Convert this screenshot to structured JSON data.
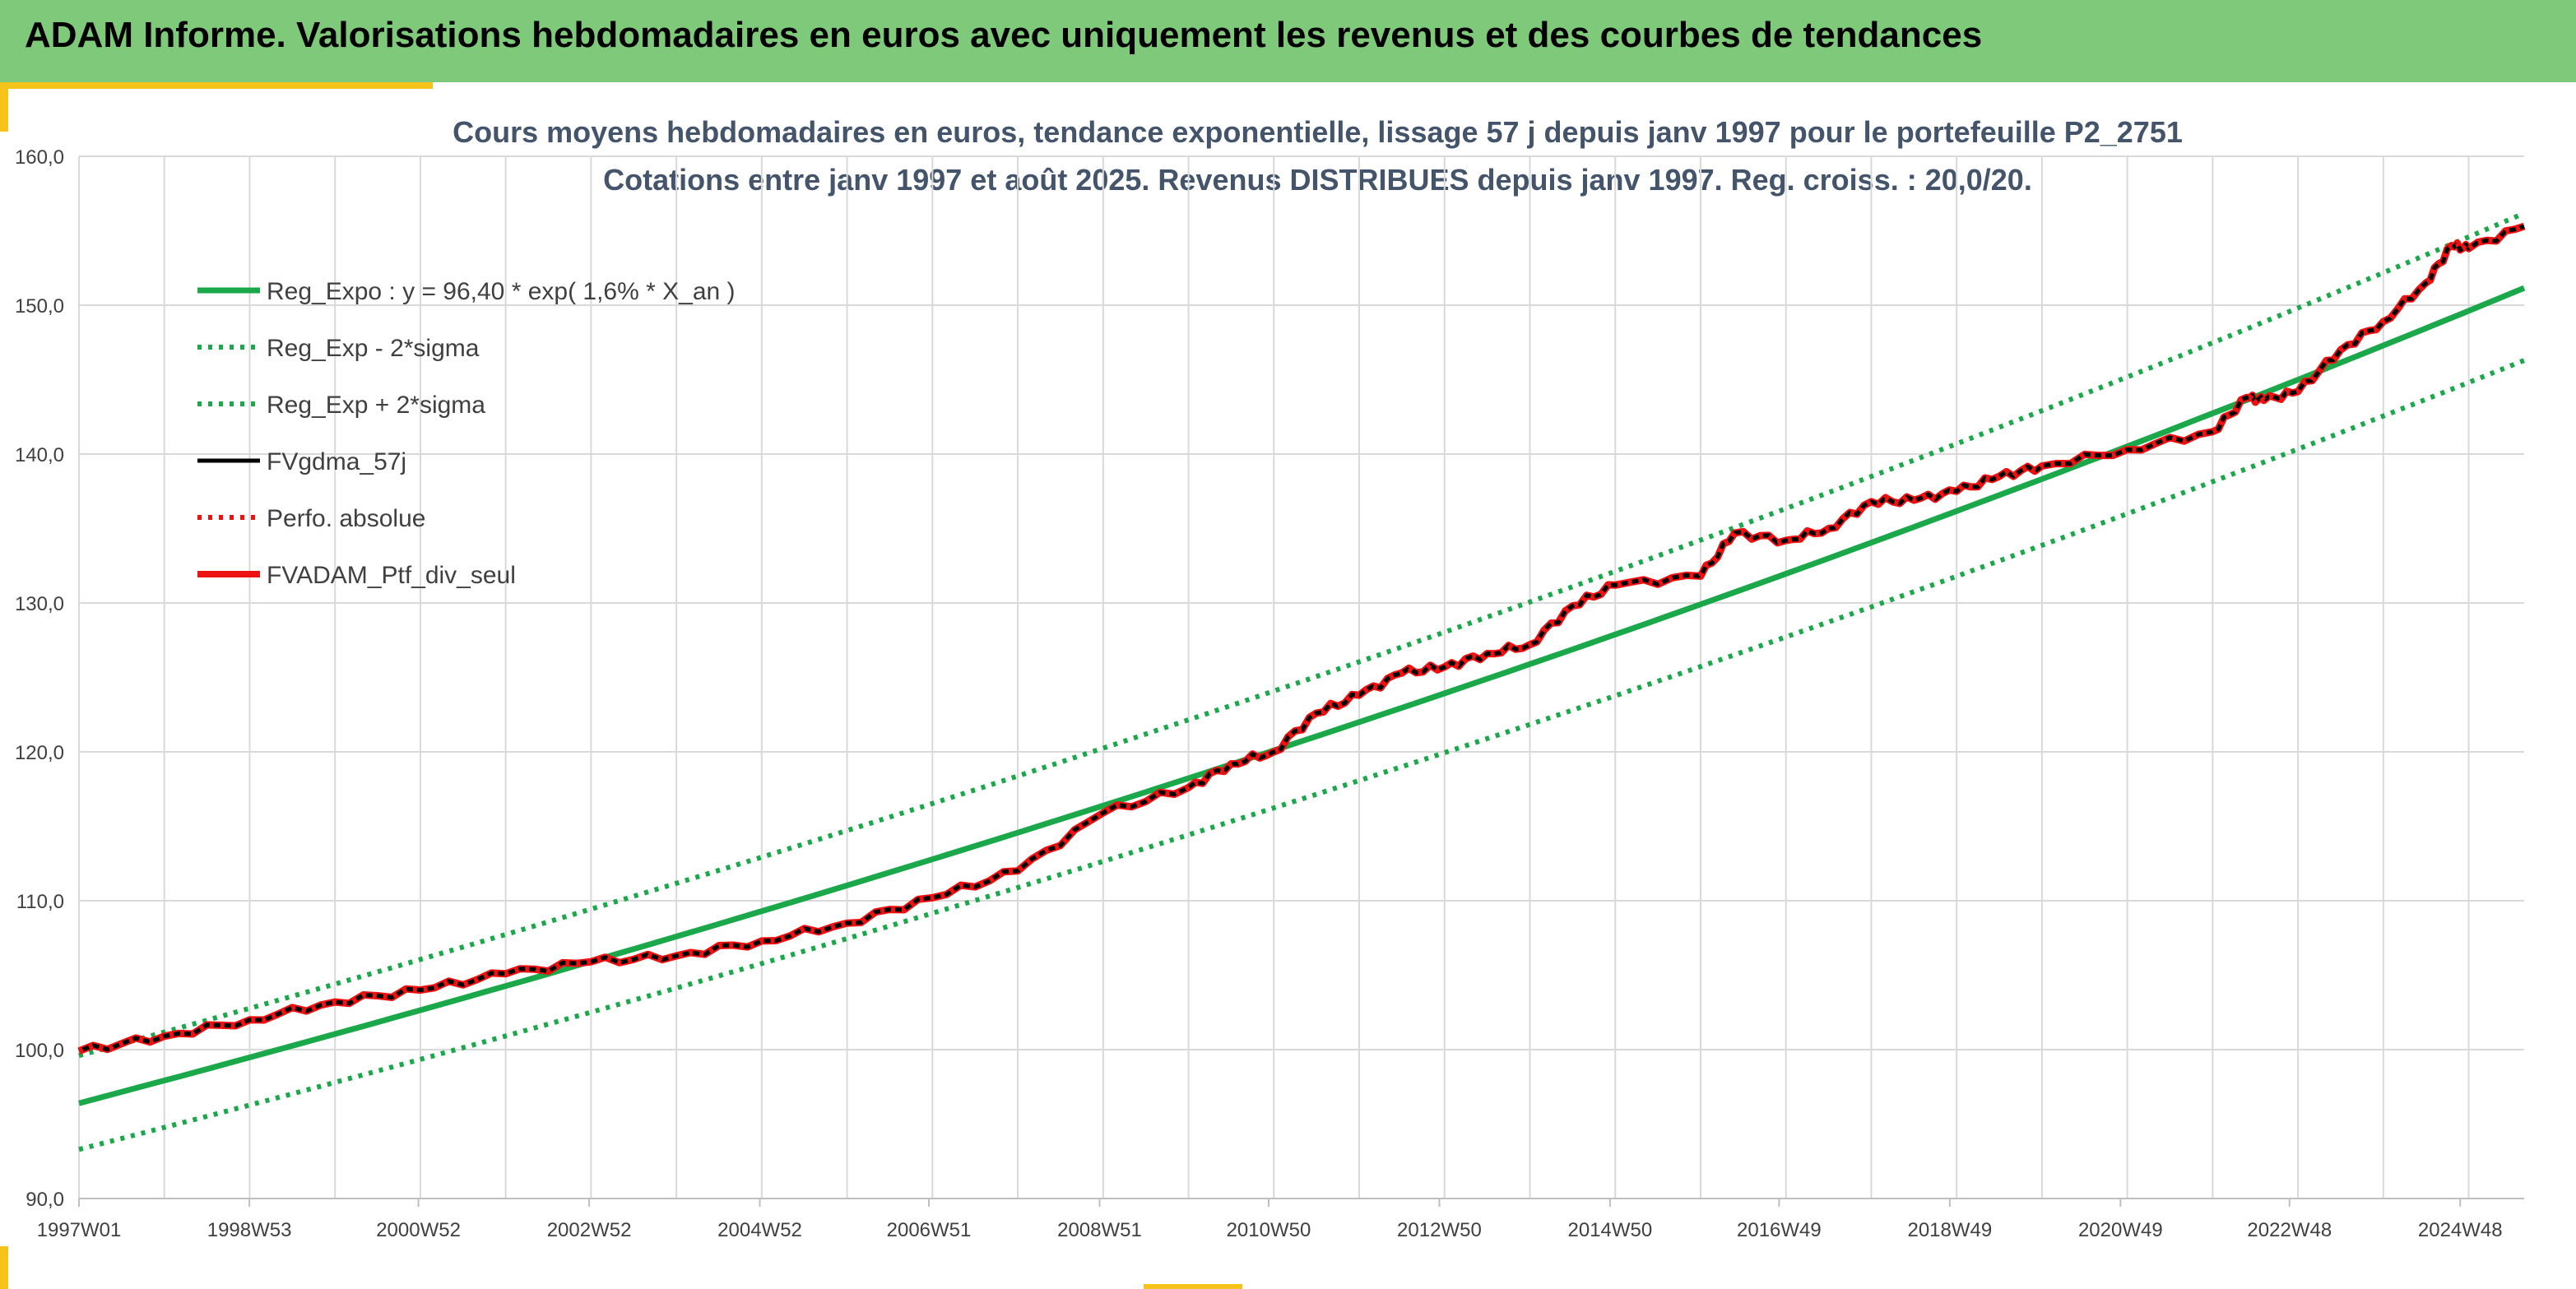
{
  "header": {
    "title": "ADAM Informe. Valorisations hebdomadaires en euros avec uniquement les revenus et des courbes de tendances"
  },
  "colors": {
    "header_bg": "#7fc97a",
    "accent": "#f6c31a",
    "trend": "#1aa84a",
    "black_series": "#000000",
    "red_series": "#ee1111",
    "title": "#44546a"
  },
  "chart_data": {
    "type": "line",
    "title": "Cours moyens hebdomadaires en euros, tendance exponentielle, lissage 57 j depuis janv 1997 pour le portefeuille P2_2751",
    "subtitle": "Cotations entre janv 1997 et août 2025. Revenus DISTRIBUES depuis janv 1997. Reg. croiss. : 20,0/20.",
    "xlabel": "",
    "ylabel": "",
    "x_ticks": [
      "1997W01",
      "1998W53",
      "2000W52",
      "2002W52",
      "2004W52",
      "2006W51",
      "2008W51",
      "2010W50",
      "2012W50",
      "2014W50",
      "2016W49",
      "2018W49",
      "2020W49",
      "2022W48",
      "2024W48"
    ],
    "y_ticks": [
      "90,0",
      "100,0",
      "110,0",
      "120,0",
      "130,0",
      "140,0",
      "150,0",
      "160,0"
    ],
    "ylim": [
      90,
      160
    ],
    "xlim": [
      1997.0,
      2025.65
    ],
    "grid": true,
    "legend_position": "top-left",
    "series": [
      {
        "name": "Reg_Expo : y = 96,40 * exp( 1,6% *  X_an )",
        "style": "solid",
        "color": "#1aa84a",
        "x": [
          1997.0,
          2025.65
        ],
        "formula": {
          "a": 96.4,
          "b": 0.0157
        }
      },
      {
        "name": "Reg_Exp - 2*sigma",
        "style": "dotted",
        "color": "#1aa84a",
        "x": [
          1997.0,
          2025.65
        ],
        "formula": {
          "a": 93.3,
          "b": 0.0157
        }
      },
      {
        "name": "Reg_Exp + 2*sigma",
        "style": "dotted",
        "color": "#1aa84a",
        "x": [
          1997.0,
          2025.65
        ],
        "formula": {
          "a": 99.6,
          "b": 0.0157
        }
      },
      {
        "name": "FVgdma_57j",
        "style": "solid",
        "color": "#000000",
        "x": [
          1997.0,
          1998.0,
          1999.0,
          2000.0,
          2001.0,
          2002.0,
          2003.0,
          2004.0,
          2005.0,
          2006.0,
          2007.0,
          2008.0,
          2009.0,
          2010.0,
          2010.5,
          2011.0,
          2011.5,
          2012.0,
          2012.5,
          2013.0,
          2013.5,
          2014.0,
          2014.5,
          2015.0,
          2016.0,
          2016.4,
          2017.0,
          2017.5,
          2018.0,
          2018.5,
          2019.0,
          2019.5,
          2020.0,
          2021.0,
          2022.0,
          2022.4,
          2022.6,
          2023.0,
          2023.5,
          2024.0,
          2024.5,
          2024.8,
          2025.0,
          2025.65
        ],
        "values": [
          99.9,
          100.9,
          102.0,
          103.2,
          104.0,
          105.1,
          105.9,
          106.3,
          107.3,
          108.5,
          110.2,
          112.0,
          115.9,
          117.6,
          119.2,
          120.0,
          122.6,
          123.8,
          125.3,
          125.7,
          126.6,
          127.2,
          129.8,
          131.2,
          131.8,
          134.7,
          134.2,
          135.0,
          136.8,
          136.9,
          137.5,
          138.5,
          139.2,
          140.3,
          141.5,
          143.8,
          143.6,
          144.2,
          147.0,
          148.9,
          151.5,
          154.0,
          153.8,
          155.3
        ]
      },
      {
        "name": "Perfo. absolue",
        "style": "dotted",
        "color": "#ee1111",
        "x": [
          1997.0,
          1998.0,
          1999.0,
          2000.0,
          2001.0,
          2002.0,
          2003.0,
          2004.0,
          2005.0,
          2006.0,
          2007.0,
          2008.0,
          2009.0,
          2010.0,
          2010.5,
          2011.0,
          2011.5,
          2012.0,
          2012.5,
          2013.0,
          2013.5,
          2014.0,
          2014.5,
          2015.0,
          2016.0,
          2016.4,
          2017.0,
          2017.5,
          2018.0,
          2018.5,
          2019.0,
          2019.5,
          2020.0,
          2021.0,
          2022.0,
          2022.4,
          2022.6,
          2023.0,
          2023.5,
          2024.0,
          2024.5,
          2024.8,
          2025.0,
          2025.65
        ],
        "values": [
          99.9,
          100.9,
          102.0,
          103.2,
          104.0,
          105.1,
          105.9,
          106.3,
          107.3,
          108.5,
          110.2,
          112.0,
          115.9,
          117.6,
          119.2,
          120.0,
          122.6,
          123.8,
          125.3,
          125.7,
          126.6,
          127.2,
          129.8,
          131.2,
          131.8,
          134.7,
          134.2,
          135.0,
          136.8,
          136.9,
          137.5,
          138.5,
          139.2,
          140.3,
          141.5,
          143.8,
          143.6,
          144.2,
          147.0,
          148.9,
          151.5,
          154.0,
          153.8,
          155.3
        ]
      },
      {
        "name": "FVADAM_Ptf_div_seul",
        "style": "solid-thick",
        "color": "#ee1111",
        "x": [
          1997.0,
          1998.0,
          1999.0,
          2000.0,
          2001.0,
          2002.0,
          2003.0,
          2004.0,
          2005.0,
          2006.0,
          2007.0,
          2008.0,
          2009.0,
          2010.0,
          2010.5,
          2011.0,
          2011.5,
          2012.0,
          2012.5,
          2013.0,
          2013.5,
          2014.0,
          2014.5,
          2015.0,
          2016.0,
          2016.4,
          2017.0,
          2017.5,
          2018.0,
          2018.5,
          2019.0,
          2019.5,
          2020.0,
          2021.0,
          2022.0,
          2022.4,
          2022.6,
          2023.0,
          2023.5,
          2024.0,
          2024.5,
          2024.8,
          2025.0,
          2025.65
        ],
        "values": [
          99.9,
          100.9,
          102.0,
          103.2,
          104.0,
          105.1,
          105.9,
          106.3,
          107.3,
          108.5,
          110.2,
          112.0,
          115.9,
          117.6,
          119.2,
          120.0,
          122.6,
          123.8,
          125.3,
          125.7,
          126.6,
          127.2,
          129.8,
          131.2,
          131.8,
          134.7,
          134.2,
          135.0,
          136.8,
          136.9,
          137.5,
          138.5,
          139.2,
          140.3,
          141.5,
          143.8,
          143.6,
          144.2,
          147.0,
          148.9,
          151.5,
          154.0,
          153.8,
          155.3
        ]
      }
    ]
  }
}
